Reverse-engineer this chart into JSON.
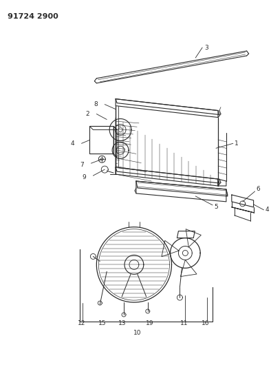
{
  "title": "91724 2900",
  "bg": "#ffffff",
  "lc": "#2a2a2a",
  "fig_w": 3.94,
  "fig_h": 5.33,
  "dpi": 100
}
